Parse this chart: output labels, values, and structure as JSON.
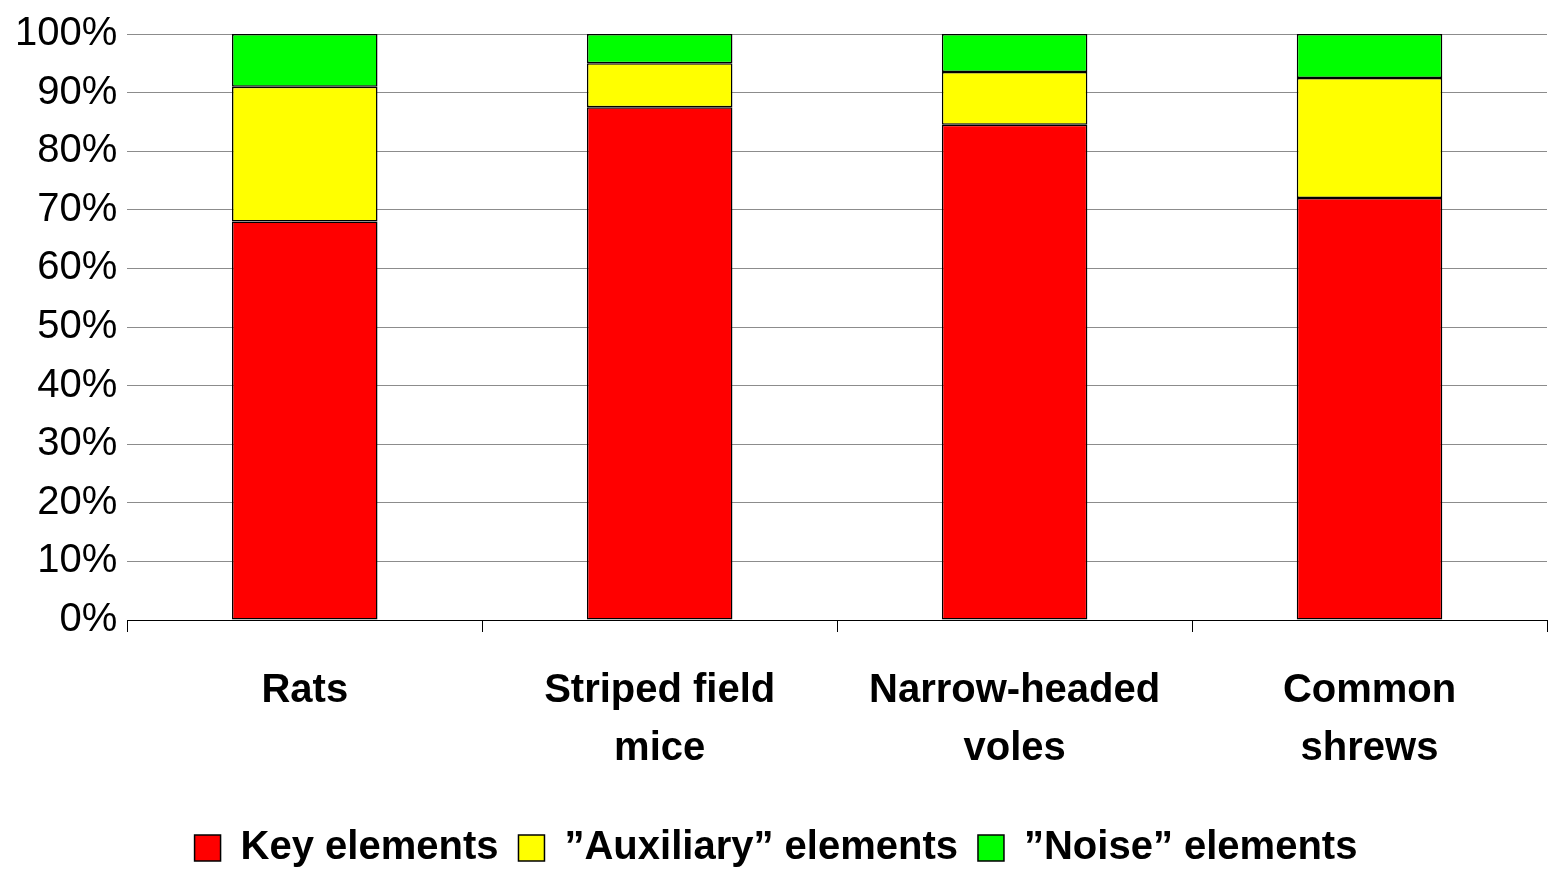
{
  "chart_data": {
    "type": "bar",
    "stacked": true,
    "categories": [
      "Rats",
      "Striped field mice",
      "Narrow-headed voles",
      "Common shrews"
    ],
    "series": [
      {
        "name": "Key elements",
        "color": "#ff0000",
        "values": [
          68,
          87.5,
          84.5,
          72
        ]
      },
      {
        "name": "”Auxiliary” elements",
        "color": "#ffff00",
        "values": [
          23,
          7.5,
          9,
          20.5
        ]
      },
      {
        "name": "”Noise” elements",
        "color": "#00ff00",
        "values": [
          9,
          5,
          6.5,
          7.5
        ]
      }
    ],
    "ylim": [
      0,
      100
    ],
    "yticks": [
      {
        "value": 0,
        "label": "0%"
      },
      {
        "value": 10,
        "label": "10%"
      },
      {
        "value": 20,
        "label": "20%"
      },
      {
        "value": 30,
        "label": "30%"
      },
      {
        "value": 40,
        "label": "40%"
      },
      {
        "value": 50,
        "label": "50%"
      },
      {
        "value": 60,
        "label": "60%"
      },
      {
        "value": 70,
        "label": "70%"
      },
      {
        "value": 80,
        "label": "80%"
      },
      {
        "value": 90,
        "label": "90%"
      },
      {
        "value": 100,
        "label": "100%"
      }
    ],
    "grid": "y",
    "legend": "bottom"
  }
}
